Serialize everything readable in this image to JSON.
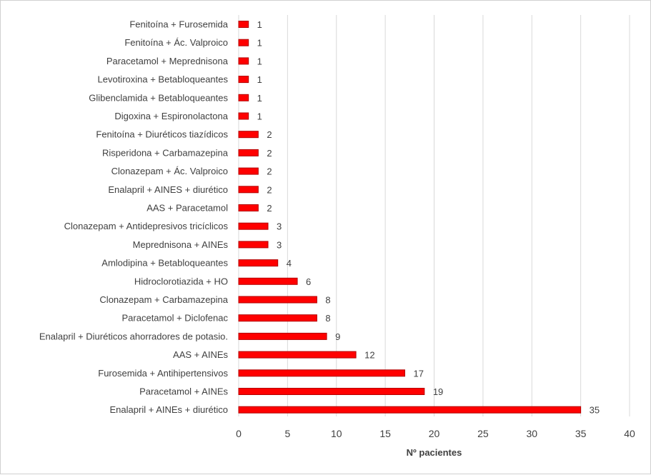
{
  "chart_data": {
    "type": "bar",
    "orientation": "horizontal",
    "categories": [
      "Fenitoína + Furosemida",
      "Fenitoína + Ác. Valproico",
      "Paracetamol + Meprednisona",
      "Levotiroxina + Betabloqueantes",
      "Glibenclamida + Betabloqueantes",
      "Digoxina + Espironolactona",
      "Fenitoína + Diuréticos tiazídicos",
      "Risperidona + Carbamazepina",
      "Clonazepam + Ác. Valproico",
      "Enalapril + AINES + diurético",
      "AAS + Paracetamol",
      "Clonazepam + Antidepresivos tricíclicos",
      "Meprednisona + AINEs",
      "Amlodipina + Betabloqueantes",
      "Hidroclorotiazida + HO",
      "Clonazepam + Carbamazepina",
      "Paracetamol + Diclofenac",
      "Enalapril + Diuréticos ahorradores de potasio.",
      "AAS + AINEs",
      "Furosemida + Antihipertensivos",
      "Paracetamol + AINEs",
      "Enalapril + AINEs + diurético"
    ],
    "values": [
      1,
      1,
      1,
      1,
      1,
      1,
      2,
      2,
      2,
      2,
      2,
      3,
      3,
      4,
      6,
      8,
      8,
      9,
      12,
      17,
      19,
      35
    ],
    "xlabel": "Nº pacientes",
    "ylabel": "",
    "title": "",
    "xlim": [
      0,
      40
    ],
    "xticks": [
      0,
      5,
      10,
      15,
      20,
      25,
      30,
      35,
      40
    ],
    "grid": "vertical",
    "legend": "none",
    "colors": {
      "bar": "#ff0000",
      "bar_border": "#b30000",
      "grid": "#d9d9d9",
      "text": "#404040"
    }
  }
}
